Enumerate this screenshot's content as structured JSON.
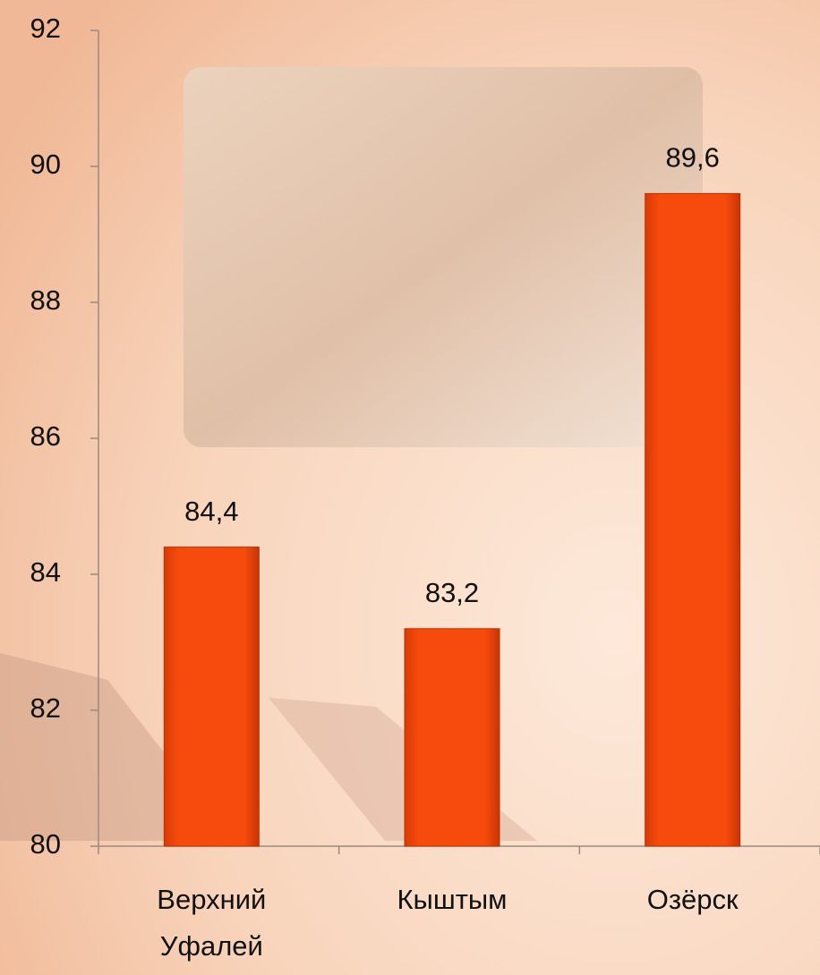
{
  "chart_data": {
    "type": "bar",
    "categories": [
      "Верхний Уфалей",
      "Кыштым",
      "Озёрск"
    ],
    "values": [
      84.4,
      83.2,
      89.6
    ],
    "value_labels": [
      "84,4",
      "83,2",
      "89,6"
    ],
    "color": "#f64b0c",
    "ylim": [
      80,
      92
    ],
    "yticks": [
      80,
      82,
      84,
      86,
      88,
      90,
      92
    ],
    "grid": false
  }
}
